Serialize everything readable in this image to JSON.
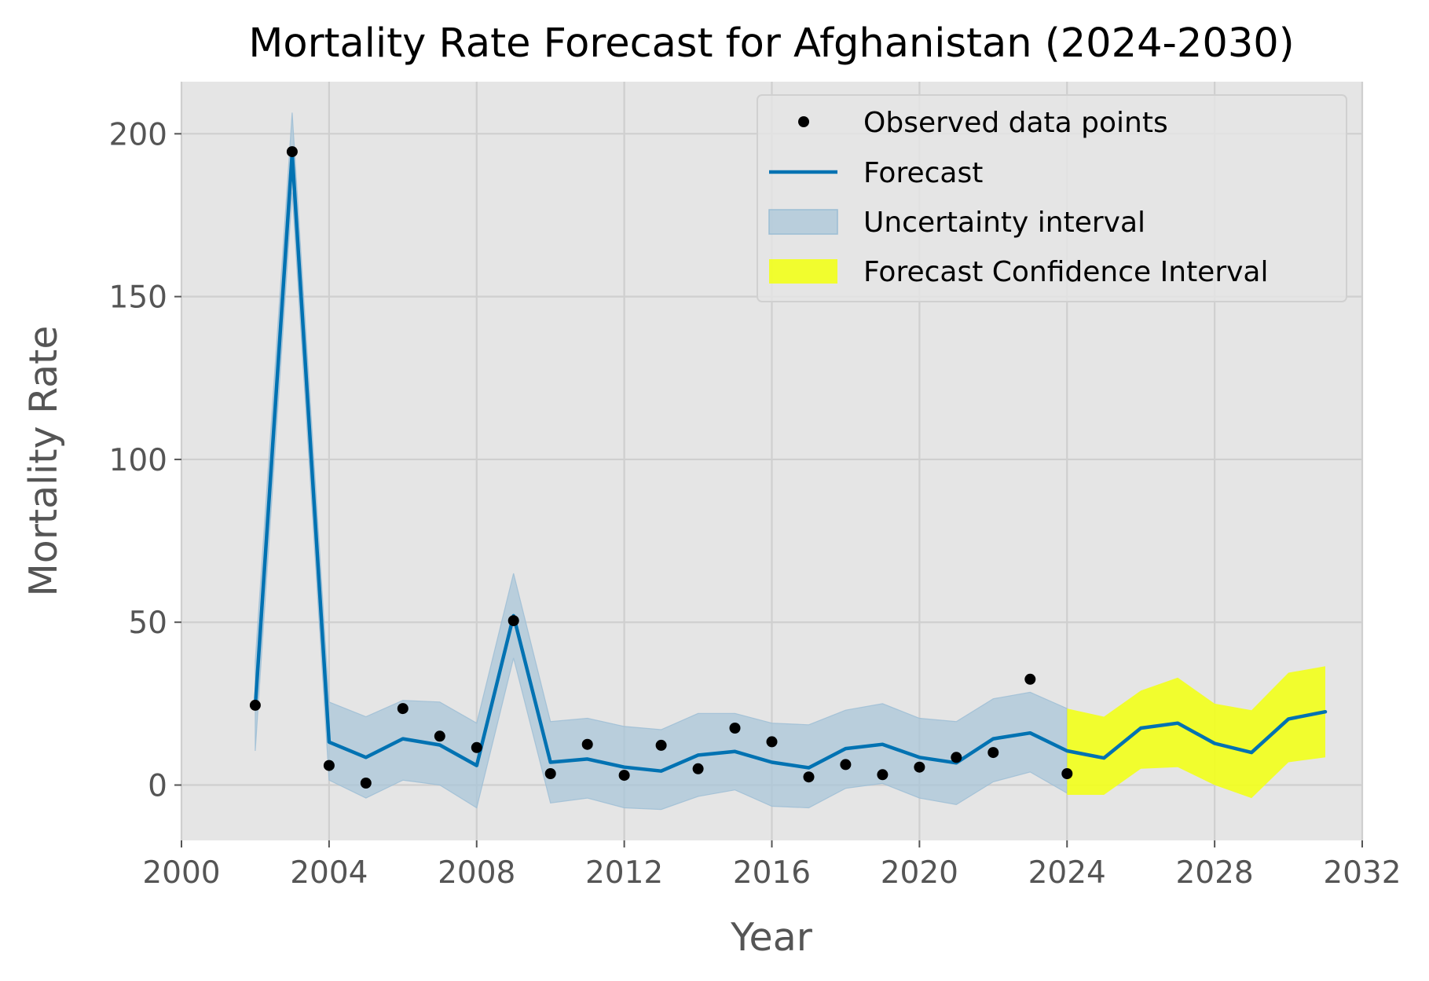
{
  "chart_data": {
    "type": "line",
    "title": "Mortality Rate Forecast for Afghanistan (2024-2030)",
    "xlabel": "Year",
    "ylabel": "Mortality Rate",
    "xlim": [
      2000,
      2032
    ],
    "ylim": [
      -17,
      216
    ],
    "x_ticks": [
      2000,
      2004,
      2008,
      2012,
      2016,
      2020,
      2024,
      2028,
      2032
    ],
    "y_ticks": [
      0,
      50,
      100,
      150,
      200
    ],
    "grid": true,
    "legend_position": "top-right",
    "colors": {
      "observed": "#000000",
      "forecast": "#0072b2",
      "uncertainty": "#a9c5d8",
      "confidence": "#f2ff1a",
      "plot_background": "#e5e5e5",
      "grid": "#cfcfcf"
    },
    "legend": [
      {
        "key": "observed",
        "label": "Observed data points",
        "kind": "marker"
      },
      {
        "key": "forecast",
        "label": "Forecast",
        "kind": "line"
      },
      {
        "key": "uncertainty",
        "label": "Uncertainty interval",
        "kind": "patch"
      },
      {
        "key": "confidence",
        "label": "Forecast Confidence Interval",
        "kind": "patch"
      }
    ],
    "observed": {
      "x": [
        2002,
        2003,
        2004,
        2005,
        2006,
        2007,
        2008,
        2009,
        2010,
        2011,
        2012,
        2013,
        2014,
        2015,
        2016,
        2017,
        2018,
        2019,
        2020,
        2021,
        2022,
        2023,
        2024
      ],
      "y": [
        24.5,
        194.5,
        6,
        0.6,
        23.5,
        15,
        11.5,
        50.5,
        3.5,
        12.5,
        3,
        12.2,
        5,
        17.5,
        13.3,
        2.5,
        6.3,
        3.2,
        5.5,
        8.5,
        10,
        32.5,
        3.5
      ]
    },
    "forecast": {
      "x": [
        2002,
        2003,
        2004,
        2005,
        2006,
        2007,
        2008,
        2009,
        2010,
        2011,
        2012,
        2013,
        2014,
        2015,
        2016,
        2017,
        2018,
        2019,
        2020,
        2021,
        2022,
        2023,
        2024,
        2025,
        2026,
        2027,
        2028,
        2029,
        2030,
        2031
      ],
      "y": [
        24,
        194,
        13.2,
        8.5,
        14.2,
        12.3,
        6,
        52,
        7,
        8,
        5.5,
        4.3,
        9.2,
        10.3,
        7,
        5.3,
        11.2,
        12.5,
        8.5,
        6.8,
        14.2,
        16,
        10.5,
        8.3,
        17.5,
        19,
        12.8,
        10,
        20.3,
        22.5
      ]
    },
    "uncertainty_interval": {
      "x": [
        2002,
        2003,
        2004,
        2005,
        2006,
        2007,
        2008,
        2009,
        2010,
        2011,
        2012,
        2013,
        2014,
        2015,
        2016,
        2017,
        2018,
        2019,
        2020,
        2021,
        2022,
        2023,
        2024
      ],
      "lower": [
        10.5,
        182,
        1.5,
        -4,
        1.5,
        0,
        -7,
        39,
        -5.5,
        -4,
        -7,
        -7.5,
        -3.5,
        -1.5,
        -6.5,
        -7,
        -1,
        0.5,
        -4,
        -6,
        1,
        4,
        -2.5
      ],
      "upper": [
        38,
        206.5,
        25.5,
        21,
        26,
        25.5,
        19,
        65,
        19.5,
        20.5,
        18,
        17,
        22,
        22,
        19,
        18.5,
        23,
        25,
        20.5,
        19.5,
        26.5,
        28.5,
        23.5
      ]
    },
    "confidence_interval": {
      "x": [
        2024,
        2025,
        2026,
        2027,
        2028,
        2029,
        2030,
        2031
      ],
      "lower": [
        -3,
        -3,
        5,
        5.5,
        0,
        -4,
        7,
        8.5
      ],
      "upper": [
        23.5,
        21,
        29,
        33,
        25,
        23,
        34.5,
        36.5
      ]
    }
  }
}
